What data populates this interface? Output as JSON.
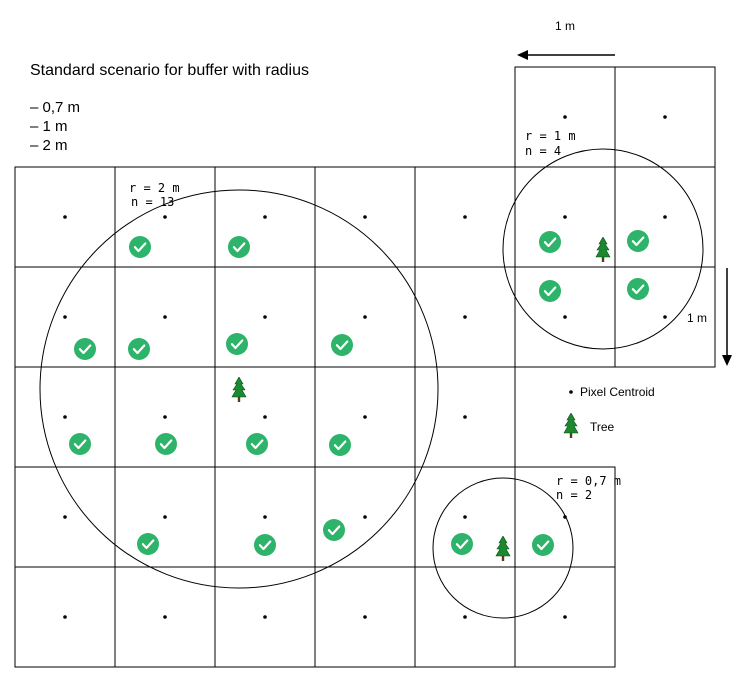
{
  "title": "Standard scenario for buffer with radius",
  "radius_list": [
    "– 0,7 m",
    "– 1 m",
    "– 2 m"
  ],
  "scale_top": "1 m",
  "scale_right": "1 m",
  "legend": {
    "centroid_label": "Pixel Centroid",
    "tree_label": "Tree",
    "tree_icon": "tree-icon",
    "check_icon": "check-icon"
  },
  "buffers": [
    {
      "id": "r2",
      "label_r": "r = 2 m",
      "label_n": "n = 13"
    },
    {
      "id": "r1",
      "label_r": "r = 1 m",
      "label_n": "n = 4"
    },
    {
      "id": "r07",
      "label_r": "r = 0,7 m",
      "label_n": "n = 2"
    }
  ],
  "colors": {
    "check": "#2db36a",
    "tree": "#1b8a2f",
    "trunk": "#5a3a1a",
    "line": "#000000"
  }
}
